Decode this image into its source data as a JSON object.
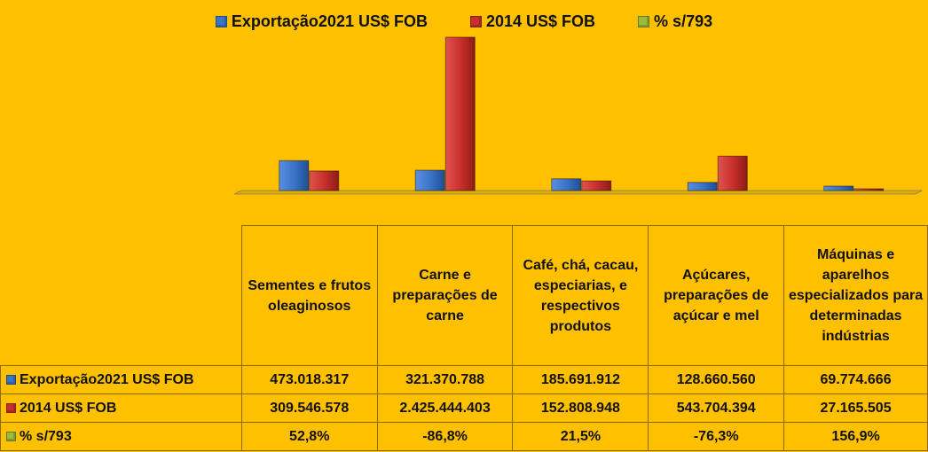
{
  "chart_data": {
    "type": "bar",
    "categories": [
      "Sementes e frutos oleaginosos",
      "Carne e preparações de carne",
      "Café, chá, cacau, especiarias, e respectivos produtos",
      "Açúcares, preparações de açúcar e mel",
      "Máquinas e aparelhos especializados para determinadas indústrias"
    ],
    "series": [
      {
        "name": "Exportação2021 US$ FOB",
        "color": "#3B74C9",
        "values": [
          473018317,
          321370788,
          185691912,
          128660560,
          69774666
        ],
        "labels": [
          "473.018.317",
          "321.370.788",
          "185.691.912",
          "128.660.560",
          "69.774.666"
        ]
      },
      {
        "name": "2014 US$ FOB",
        "color": "#C9302C",
        "values": [
          309546578,
          2425444403,
          152808948,
          543704394,
          27165505
        ],
        "labels": [
          "309.546.578",
          "2.425.444.403",
          "152.808.948",
          "543.704.394",
          "27.165.505"
        ]
      },
      {
        "name": "% s/793",
        "color": "#9BBB3A",
        "values": [
          52.8,
          -86.8,
          21.5,
          -76.3,
          156.9
        ],
        "labels": [
          "52,8%",
          "-86,8%",
          "21,5%",
          "-76,3%",
          "156,9%"
        ]
      }
    ],
    "legend_position": "top",
    "data_table": true,
    "grid": false
  }
}
